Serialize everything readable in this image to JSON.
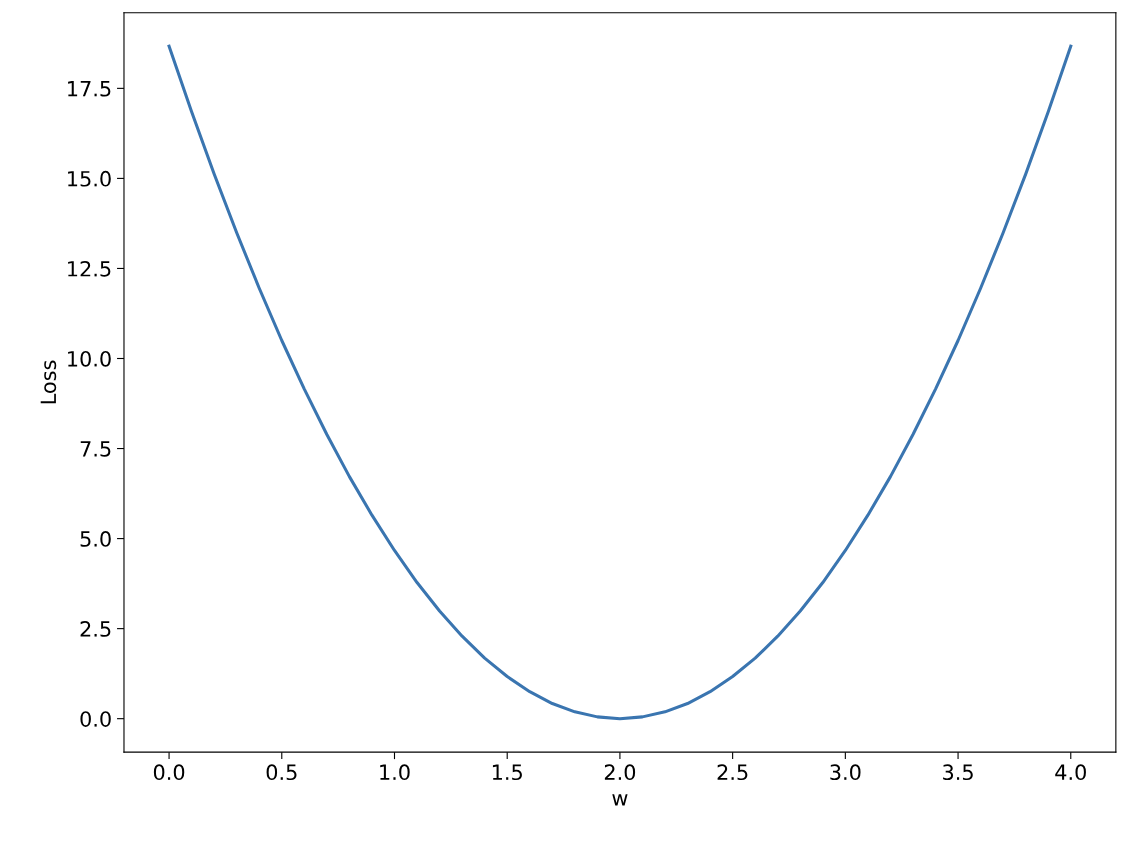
{
  "chart_data": {
    "type": "line",
    "xlabel": "w",
    "ylabel": "Loss",
    "x": [
      0.0,
      0.1,
      0.2,
      0.3,
      0.4,
      0.5,
      0.6,
      0.7,
      0.8,
      0.9,
      1.0,
      1.1,
      1.2,
      1.3,
      1.4,
      1.5,
      1.6,
      1.7,
      1.8,
      1.9,
      2.0,
      2.1,
      2.2,
      2.3,
      2.4,
      2.5,
      2.6,
      2.7,
      2.8,
      2.9,
      3.0,
      3.1,
      3.2,
      3.3,
      3.4,
      3.5,
      3.6,
      3.7,
      3.8,
      3.9,
      4.0
    ],
    "series": [
      {
        "color": "#3a75b0",
        "values": [
          18.67,
          16.85,
          15.12,
          13.49,
          11.95,
          10.5,
          9.15,
          7.89,
          6.72,
          5.65,
          4.67,
          3.78,
          2.99,
          2.29,
          1.68,
          1.17,
          0.75,
          0.42,
          0.19,
          0.05,
          0.0,
          0.05,
          0.19,
          0.42,
          0.75,
          1.17,
          1.68,
          2.29,
          2.99,
          3.78,
          4.67,
          5.65,
          6.72,
          7.89,
          9.15,
          10.5,
          11.95,
          13.49,
          15.12,
          16.85,
          18.67
        ]
      }
    ],
    "xlim": [
      -0.2,
      4.2
    ],
    "ylim": [
      -0.93,
      19.6
    ],
    "xticks": [
      {
        "value": 0,
        "label": "0.0"
      },
      {
        "value": 0.5,
        "label": "0.5"
      },
      {
        "value": 1,
        "label": "1.0"
      },
      {
        "value": 1.5,
        "label": "1.5"
      },
      {
        "value": 2,
        "label": "2.0"
      },
      {
        "value": 2.5,
        "label": "2.5"
      },
      {
        "value": 3,
        "label": "3.0"
      },
      {
        "value": 3.5,
        "label": "3.5"
      },
      {
        "value": 4,
        "label": "4.0"
      }
    ],
    "yticks": [
      {
        "value": 0,
        "label": "0.0"
      },
      {
        "value": 2.5,
        "label": "2.5"
      },
      {
        "value": 5,
        "label": "5.0"
      },
      {
        "value": 7.5,
        "label": "7.5"
      },
      {
        "value": 10,
        "label": "10.0"
      },
      {
        "value": 12.5,
        "label": "12.5"
      },
      {
        "value": 15,
        "label": "15.0"
      },
      {
        "value": 17.5,
        "label": "17.5"
      }
    ],
    "grid": false,
    "legend": false,
    "marker": "none",
    "line_style": "solid"
  }
}
